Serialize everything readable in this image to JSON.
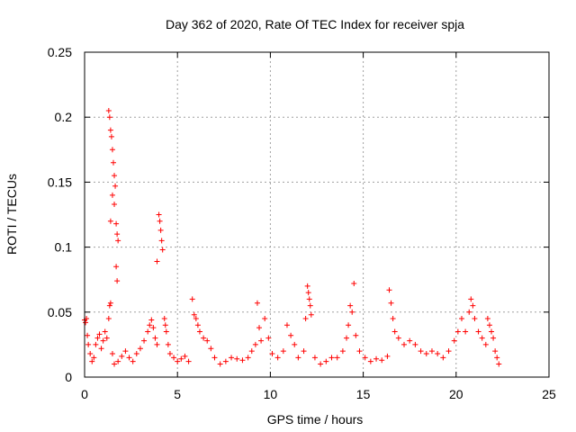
{
  "chart_data": {
    "type": "scatter",
    "title": "Day 362 of 2020, Rate Of TEC Index for receiver spja",
    "xlabel": "GPS time / hours",
    "ylabel": "ROTI / TECUs",
    "xlim": [
      0,
      25
    ],
    "ylim": [
      0,
      0.25
    ],
    "x_ticks": [
      0,
      5,
      10,
      15,
      20,
      25
    ],
    "x_tick_labels": [
      "0",
      "5",
      "10",
      "15",
      "20",
      "25"
    ],
    "y_ticks": [
      0,
      0.05,
      0.1,
      0.15,
      0.2,
      0.25
    ],
    "y_tick_labels": [
      "0",
      "0.05",
      "0.1",
      "0.15",
      "0.2",
      "0.25"
    ],
    "grid": true,
    "marker": "+",
    "color": "#ff0000",
    "series": [
      {
        "name": "ROTI",
        "points": [
          [
            0.0,
            0.044
          ],
          [
            0.05,
            0.042
          ],
          [
            0.1,
            0.045
          ],
          [
            0.15,
            0.032
          ],
          [
            0.2,
            0.025
          ],
          [
            0.3,
            0.018
          ],
          [
            0.4,
            0.012
          ],
          [
            0.5,
            0.015
          ],
          [
            0.6,
            0.025
          ],
          [
            0.7,
            0.03
          ],
          [
            0.8,
            0.033
          ],
          [
            0.9,
            0.022
          ],
          [
            1.0,
            0.028
          ],
          [
            1.1,
            0.035
          ],
          [
            1.2,
            0.03
          ],
          [
            1.3,
            0.045
          ],
          [
            1.35,
            0.055
          ],
          [
            1.4,
            0.057
          ],
          [
            1.3,
            0.205
          ],
          [
            1.35,
            0.2
          ],
          [
            1.4,
            0.19
          ],
          [
            1.45,
            0.185
          ],
          [
            1.5,
            0.175
          ],
          [
            1.55,
            0.165
          ],
          [
            1.6,
            0.155
          ],
          [
            1.65,
            0.147
          ],
          [
            1.4,
            0.12
          ],
          [
            1.5,
            0.14
          ],
          [
            1.6,
            0.133
          ],
          [
            1.7,
            0.118
          ],
          [
            1.75,
            0.11
          ],
          [
            1.8,
            0.105
          ],
          [
            1.7,
            0.085
          ],
          [
            1.75,
            0.074
          ],
          [
            1.5,
            0.018
          ],
          [
            1.6,
            0.01
          ],
          [
            1.8,
            0.012
          ],
          [
            2.0,
            0.016
          ],
          [
            2.2,
            0.02
          ],
          [
            2.4,
            0.015
          ],
          [
            2.6,
            0.012
          ],
          [
            2.8,
            0.018
          ],
          [
            3.0,
            0.022
          ],
          [
            3.2,
            0.028
          ],
          [
            3.4,
            0.035
          ],
          [
            3.5,
            0.04
          ],
          [
            3.6,
            0.044
          ],
          [
            3.7,
            0.038
          ],
          [
            3.8,
            0.03
          ],
          [
            3.9,
            0.025
          ],
          [
            3.9,
            0.089
          ],
          [
            4.0,
            0.125
          ],
          [
            4.05,
            0.12
          ],
          [
            4.1,
            0.113
          ],
          [
            4.15,
            0.105
          ],
          [
            4.2,
            0.098
          ],
          [
            4.3,
            0.045
          ],
          [
            4.35,
            0.04
          ],
          [
            4.4,
            0.035
          ],
          [
            4.5,
            0.025
          ],
          [
            4.6,
            0.018
          ],
          [
            4.8,
            0.015
          ],
          [
            5.0,
            0.012
          ],
          [
            5.2,
            0.014
          ],
          [
            5.4,
            0.016
          ],
          [
            5.6,
            0.012
          ],
          [
            5.8,
            0.06
          ],
          [
            5.9,
            0.048
          ],
          [
            6.0,
            0.045
          ],
          [
            6.1,
            0.04
          ],
          [
            6.2,
            0.035
          ],
          [
            6.4,
            0.03
          ],
          [
            6.6,
            0.028
          ],
          [
            6.8,
            0.022
          ],
          [
            7.0,
            0.015
          ],
          [
            7.3,
            0.01
          ],
          [
            7.6,
            0.012
          ],
          [
            7.9,
            0.015
          ],
          [
            8.2,
            0.014
          ],
          [
            8.5,
            0.013
          ],
          [
            8.8,
            0.015
          ],
          [
            9.0,
            0.02
          ],
          [
            9.2,
            0.025
          ],
          [
            9.3,
            0.057
          ],
          [
            9.4,
            0.038
          ],
          [
            9.5,
            0.028
          ],
          [
            9.7,
            0.045
          ],
          [
            9.9,
            0.03
          ],
          [
            10.1,
            0.018
          ],
          [
            10.4,
            0.015
          ],
          [
            10.7,
            0.02
          ],
          [
            10.9,
            0.04
          ],
          [
            11.1,
            0.032
          ],
          [
            11.3,
            0.025
          ],
          [
            11.5,
            0.015
          ],
          [
            11.8,
            0.02
          ],
          [
            11.9,
            0.045
          ],
          [
            12.0,
            0.07
          ],
          [
            12.05,
            0.065
          ],
          [
            12.1,
            0.06
          ],
          [
            12.15,
            0.055
          ],
          [
            12.2,
            0.048
          ],
          [
            12.4,
            0.015
          ],
          [
            12.7,
            0.01
          ],
          [
            13.0,
            0.012
          ],
          [
            13.3,
            0.015
          ],
          [
            13.6,
            0.015
          ],
          [
            13.9,
            0.02
          ],
          [
            14.1,
            0.03
          ],
          [
            14.2,
            0.04
          ],
          [
            14.3,
            0.055
          ],
          [
            14.4,
            0.05
          ],
          [
            14.5,
            0.072
          ],
          [
            14.6,
            0.032
          ],
          [
            14.8,
            0.02
          ],
          [
            15.1,
            0.015
          ],
          [
            15.4,
            0.012
          ],
          [
            15.7,
            0.014
          ],
          [
            16.0,
            0.013
          ],
          [
            16.3,
            0.016
          ],
          [
            16.4,
            0.067
          ],
          [
            16.5,
            0.057
          ],
          [
            16.6,
            0.045
          ],
          [
            16.7,
            0.035
          ],
          [
            16.9,
            0.03
          ],
          [
            17.2,
            0.025
          ],
          [
            17.5,
            0.028
          ],
          [
            17.8,
            0.025
          ],
          [
            18.1,
            0.02
          ],
          [
            18.4,
            0.018
          ],
          [
            18.7,
            0.02
          ],
          [
            19.0,
            0.018
          ],
          [
            19.3,
            0.015
          ],
          [
            19.6,
            0.02
          ],
          [
            19.9,
            0.028
          ],
          [
            20.1,
            0.035
          ],
          [
            20.3,
            0.045
          ],
          [
            20.5,
            0.035
          ],
          [
            20.7,
            0.05
          ],
          [
            20.8,
            0.06
          ],
          [
            20.9,
            0.055
          ],
          [
            21.0,
            0.045
          ],
          [
            21.2,
            0.035
          ],
          [
            21.4,
            0.03
          ],
          [
            21.6,
            0.025
          ],
          [
            21.7,
            0.045
          ],
          [
            21.8,
            0.04
          ],
          [
            21.9,
            0.035
          ],
          [
            22.0,
            0.03
          ],
          [
            22.1,
            0.02
          ],
          [
            22.2,
            0.015
          ],
          [
            22.3,
            0.01
          ]
        ]
      }
    ]
  }
}
